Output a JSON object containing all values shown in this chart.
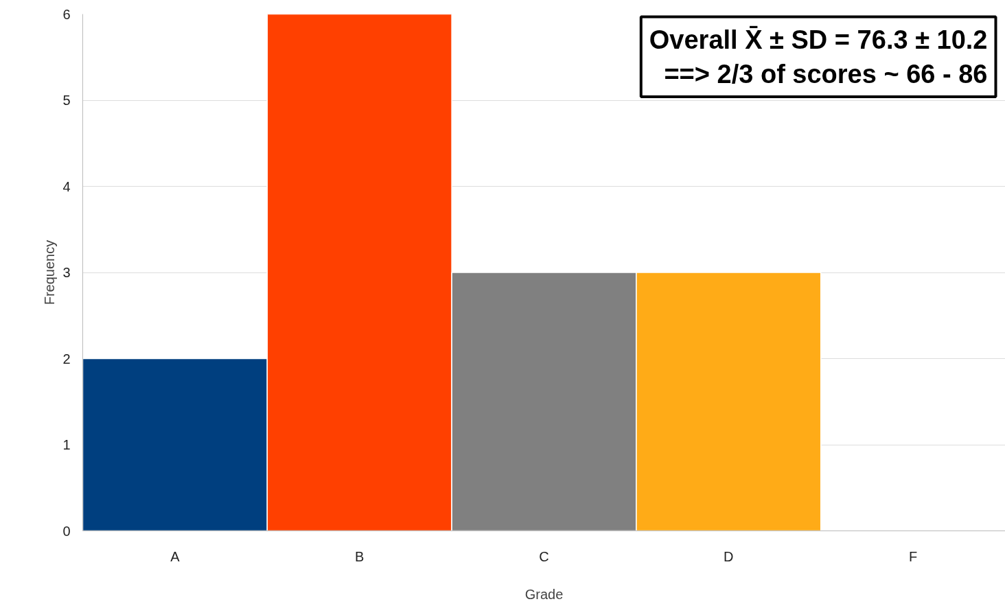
{
  "chart_data": {
    "type": "bar",
    "xlabel": "Grade",
    "ylabel": "Frequency",
    "categories": [
      "A",
      "B",
      "C",
      "D",
      "F"
    ],
    "values": [
      2,
      6,
      3,
      3,
      0
    ],
    "colors": [
      "#003f7f",
      "#ff4000",
      "#808080",
      "#ffab17",
      "#ffffff"
    ],
    "ylim": [
      0,
      6
    ],
    "yticks": [
      0,
      1,
      2,
      3,
      4,
      5,
      6
    ],
    "grid": "y",
    "annotations": [
      "Overall X̄ ± SD = 76.3 ± 10.2",
      "==> 2/3 of scores ~ 66 - 86"
    ]
  }
}
